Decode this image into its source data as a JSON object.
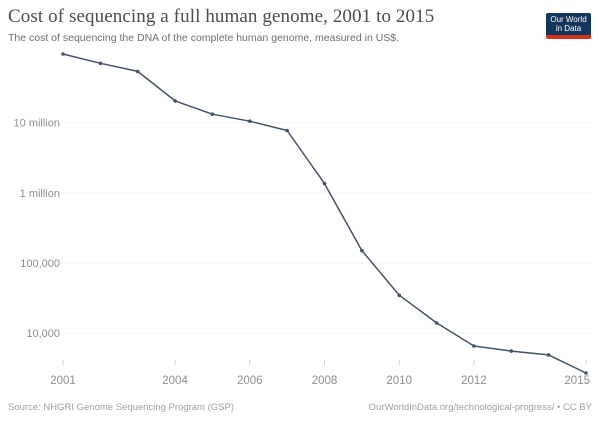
{
  "header": {
    "title": "Cost of sequencing a full human genome, 2001 to 2015",
    "subtitle": "The cost of sequencing the DNA of the complete human genome, measured in US$.",
    "logo": {
      "line1": "Our World",
      "line2": "in Data",
      "bg_color": "#14355c",
      "accent_color": "#d3301d"
    }
  },
  "footer": {
    "source": "Source: NHGRI Genome Sequencing Program (GSP)",
    "link": "OurWorldInData.org/technological-progress/ • CC BY"
  },
  "chart_data": {
    "type": "line",
    "title": "Cost of sequencing a full human genome, 2001 to 2015",
    "xlabel": "",
    "ylabel": "",
    "y_scale": "log",
    "grid": "dotted-horizontal",
    "legend": "none",
    "line_color": "#455369",
    "tick_color": "#8f8f8f",
    "grid_color": "#dadada",
    "x": [
      2001,
      2002,
      2003,
      2004,
      2005,
      2006,
      2007,
      2008,
      2009,
      2010,
      2011,
      2012,
      2013,
      2014,
      2015
    ],
    "values": [
      95263072,
      70175437,
      53751684,
      20442576,
      13210291,
      10474556,
      7743398,
      1352982,
      149739,
      34626,
      13979,
      6543,
      5536,
      4891,
      2697
    ],
    "x_ticks": [
      2001,
      2004,
      2006,
      2008,
      2010,
      2012,
      2015
    ],
    "y_ticks": [
      {
        "value": 10000000,
        "label": "10 million"
      },
      {
        "value": 1000000,
        "label": "1 million"
      },
      {
        "value": 100000,
        "label": "100,000"
      },
      {
        "value": 10000,
        "label": "10,000"
      }
    ],
    "xlim": [
      2001,
      2015
    ],
    "ylim": [
      2697,
      95263072
    ]
  }
}
